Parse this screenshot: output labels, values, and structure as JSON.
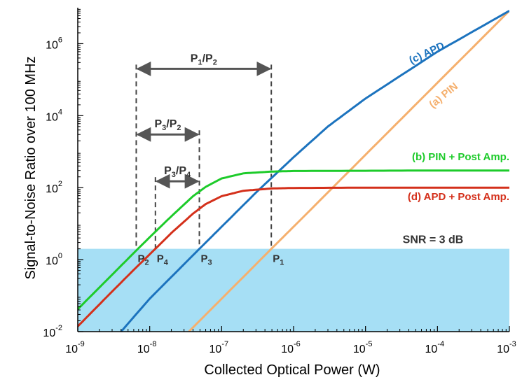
{
  "chart_data": {
    "type": "line",
    "xlabel": "Collected Optical Power (W)",
    "ylabel": "Signal-to-Noise Ratio over 100 MHz",
    "xscale": "log",
    "yscale": "log",
    "xlim": [
      1e-09,
      0.001
    ],
    "ylim": [
      0.01,
      10000000.0
    ],
    "x_ticks": [
      {
        "base": "10",
        "exp": "-9",
        "value": 1e-09
      },
      {
        "base": "10",
        "exp": "-8",
        "value": 1e-08
      },
      {
        "base": "10",
        "exp": "-7",
        "value": 1e-07
      },
      {
        "base": "10",
        "exp": "-6",
        "value": 1e-06
      },
      {
        "base": "10",
        "exp": "-5",
        "value": 1e-05
      },
      {
        "base": "10",
        "exp": "-4",
        "value": 0.0001
      },
      {
        "base": "10",
        "exp": "-3",
        "value": 0.001
      }
    ],
    "y_ticks": [
      {
        "base": "10",
        "exp": "-2",
        "value": 0.01
      },
      {
        "base": "10",
        "exp": "0",
        "value": 1.0
      },
      {
        "base": "10",
        "exp": "2",
        "value": 100.0
      },
      {
        "base": "10",
        "exp": "4",
        "value": 10000.0
      },
      {
        "base": "10",
        "exp": "6",
        "value": 1000000.0
      }
    ],
    "series": [
      {
        "name": "(a) PIN",
        "color": "#F5B06E",
        "x": [
          3.5e-08,
          1e-07,
          4.9e-07,
          1e-06,
          1e-05,
          0.0001,
          0.001
        ],
        "y": [
          0.01,
          0.082,
          1.99,
          8.2,
          820,
          82000,
          8200000.0
        ]
      },
      {
        "name": "(c) APD",
        "color": "#1C73BE",
        "x": [
          4e-09,
          1e-08,
          4.9e-08,
          1e-07,
          3e-07,
          1e-06,
          3e-06,
          1e-05,
          0.0001,
          0.001
        ],
        "y": [
          0.01,
          0.0825,
          1.99,
          8.2,
          73,
          700,
          5000,
          30000,
          600000,
          8200000.0
        ]
      },
      {
        "name": "(b) PIN + Post Amp.",
        "color": "#1DCB2A",
        "x": [
          1e-09,
          3e-09,
          6.5e-09,
          1e-08,
          2e-08,
          4e-08,
          6e-08,
          1e-07,
          2e-07,
          5e-07,
          1e-06,
          1e-05,
          0.0001,
          0.001
        ],
        "y": [
          0.042,
          0.38,
          1.8,
          4.2,
          16,
          58,
          105,
          180,
          250,
          280,
          290,
          295,
          300,
          300
        ]
      },
      {
        "name": "(d) APD + Post Amp.",
        "color": "#D4301B",
        "x": [
          1e-09,
          3e-09,
          6e-09,
          1.2e-08,
          2e-08,
          4e-08,
          6e-08,
          1e-07,
          2e-07,
          5e-07,
          1e-06,
          1e-05,
          0.0001,
          0.001
        ],
        "y": [
          0.014,
          0.13,
          0.52,
          2.0,
          5.5,
          19,
          35,
          58,
          82,
          95,
          98,
          100,
          100,
          100
        ]
      }
    ],
    "threshold": {
      "label": "SNR = 3 dB",
      "value": 2
    },
    "points": [
      {
        "label": "P",
        "sub": "2",
        "x": 6.5e-09
      },
      {
        "label": "P",
        "sub": "4",
        "x": 1.2e-08
      },
      {
        "label": "P",
        "sub": "3",
        "x": 4.9e-08
      },
      {
        "label": "P",
        "sub": "1",
        "x": 4.9e-07
      }
    ],
    "ratios": [
      {
        "a": "P",
        "as": "1",
        "b": "P",
        "bs": "2",
        "from": 6.5e-09,
        "to": 4.9e-07,
        "y": 200000.0
      },
      {
        "a": "P",
        "as": "3",
        "b": "P",
        "bs": "2",
        "from": 6.5e-09,
        "to": 4.9e-08,
        "y": 3000.0
      },
      {
        "a": "P",
        "as": "3",
        "b": "P",
        "bs": "4",
        "from": 1.2e-08,
        "to": 4.9e-08,
        "y": 150
      }
    ]
  }
}
